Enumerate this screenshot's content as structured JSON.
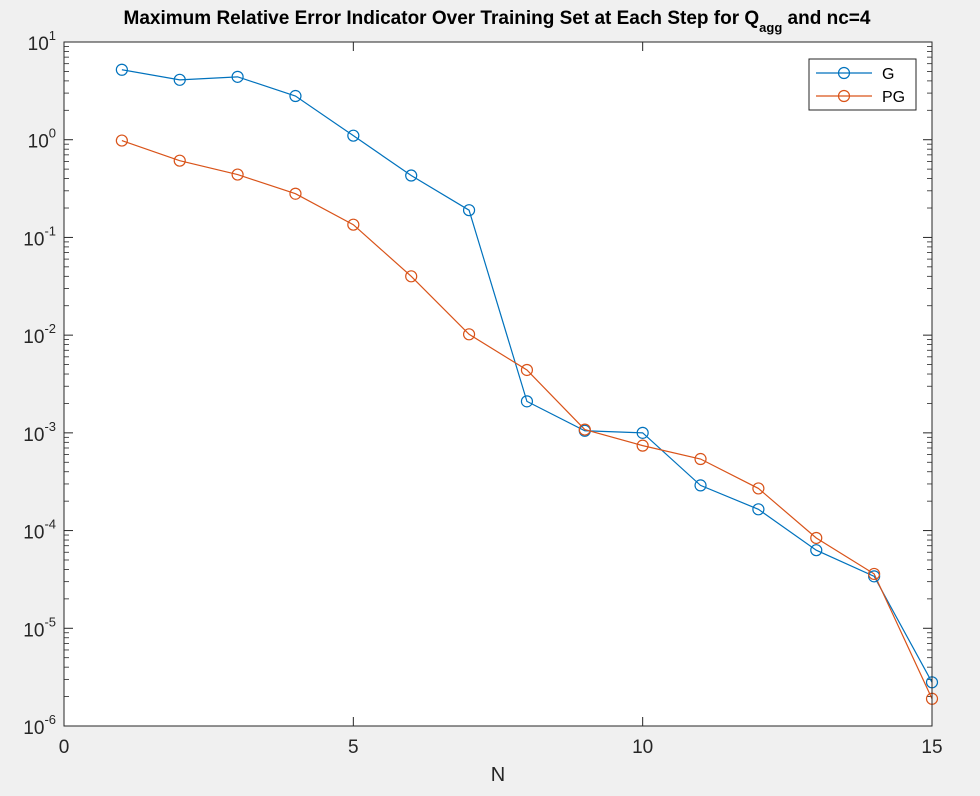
{
  "chart_data": {
    "type": "line",
    "title_main": "Maximum Relative Error Indicator Over Training Set at Each Step for Q",
    "title_sub": "agg",
    "title_tail": " and nc=4",
    "xlabel": "N",
    "ylabel": "",
    "xlim": [
      0,
      15
    ],
    "ylim": [
      1e-06,
      10
    ],
    "yscale": "log",
    "grid": false,
    "legend_position": "top-right",
    "x_ticks": [
      0,
      5,
      10,
      15
    ],
    "x_tick_labels": [
      "0",
      "5",
      "10",
      "15"
    ],
    "y_ticks": [
      {
        "value": 10,
        "base": "10",
        "exp": "1"
      },
      {
        "value": 1,
        "base": "10",
        "exp": "0"
      },
      {
        "value": 0.1,
        "base": "10",
        "exp": "-1"
      },
      {
        "value": 0.01,
        "base": "10",
        "exp": "-2"
      },
      {
        "value": 0.001,
        "base": "10",
        "exp": "-3"
      },
      {
        "value": 0.0001,
        "base": "10",
        "exp": "-4"
      },
      {
        "value": 1e-05,
        "base": "10",
        "exp": "-5"
      },
      {
        "value": 1e-06,
        "base": "10",
        "exp": "-6"
      }
    ],
    "x": [
      1,
      2,
      3,
      4,
      5,
      6,
      7,
      8,
      9,
      10,
      11,
      12,
      13,
      14,
      15
    ],
    "series": [
      {
        "name": "G",
        "color": "#0072BD",
        "marker": "circle",
        "values": [
          5.2,
          4.1,
          4.4,
          2.8,
          1.1,
          0.43,
          0.19,
          0.0021,
          0.00105,
          0.001,
          0.00029,
          0.000165,
          6.3e-05,
          3.4e-05,
          2.8e-06
        ]
      },
      {
        "name": "PG",
        "color": "#D95319",
        "marker": "circle",
        "values": [
          0.98,
          0.61,
          0.44,
          0.28,
          0.135,
          0.04,
          0.0102,
          0.0044,
          0.00108,
          0.00074,
          0.00054,
          0.00027,
          8.4e-05,
          3.6e-05,
          1.9e-06
        ]
      }
    ]
  }
}
